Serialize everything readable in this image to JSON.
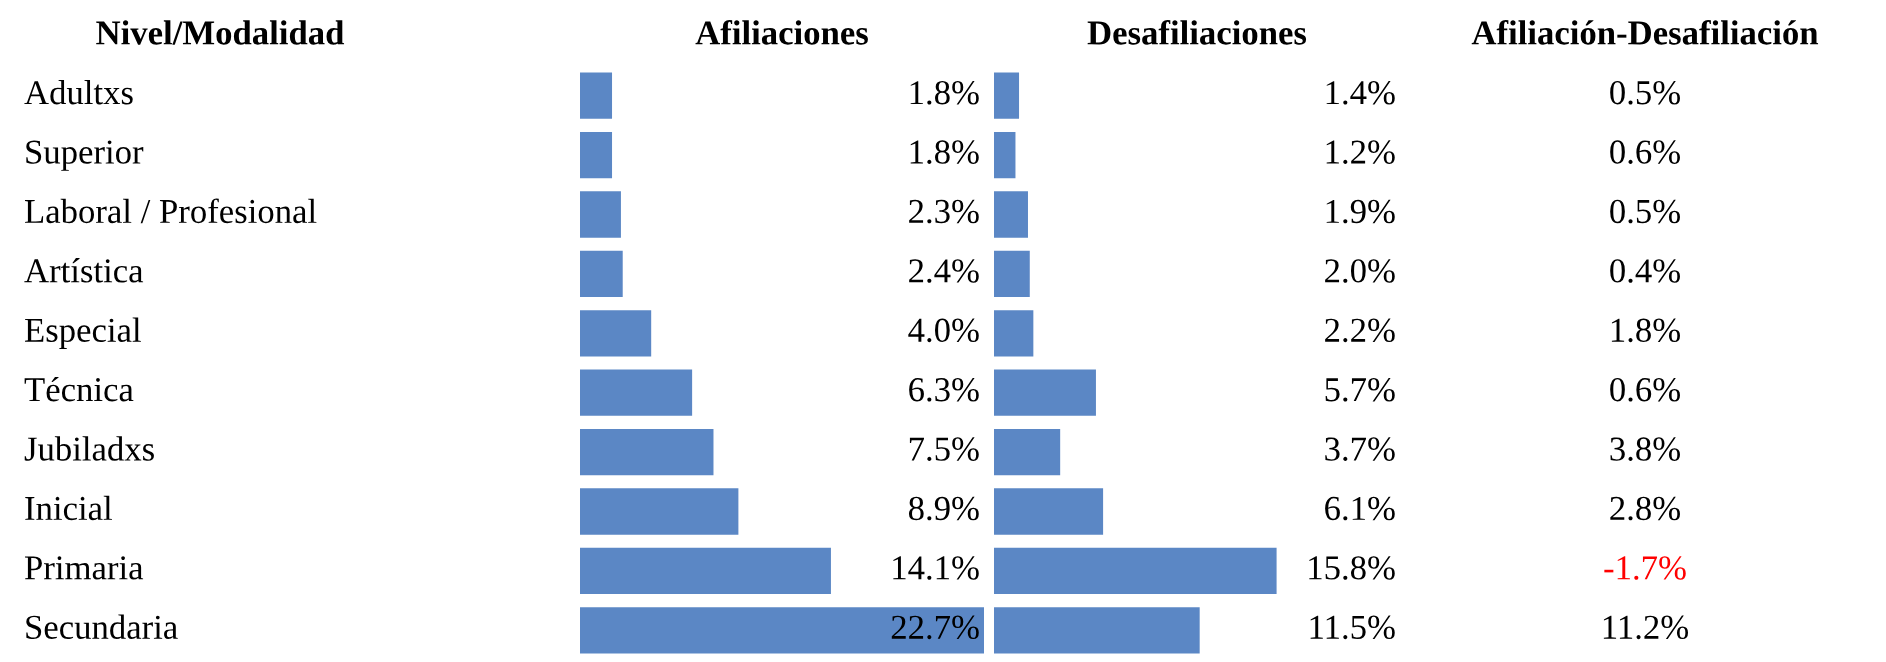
{
  "chart_data": [
    {
      "type": "bar",
      "orientation": "horizontal",
      "title": "Afiliaciones",
      "ylabel": "Nivel/Modalidad",
      "categories": [
        "Adultxs",
        "Superior",
        "Laboral / Profesional",
        "Artística",
        "Especial",
        "Técnica",
        "Jubiladxs",
        "Inicial",
        "Primaria",
        "Secundaria"
      ],
      "values": [
        1.8,
        1.8,
        2.3,
        2.4,
        4.0,
        6.3,
        7.5,
        8.9,
        14.1,
        22.7
      ],
      "value_labels": [
        "1.8%",
        "1.8%",
        "2.3%",
        "2.4%",
        "4.0%",
        "6.3%",
        "7.5%",
        "8.9%",
        "14.1%",
        "22.7%"
      ],
      "color": "#5b87c5",
      "tick_labels": false
    },
    {
      "type": "bar",
      "orientation": "horizontal",
      "title": "Desafiliaciones",
      "categories": [
        null,
        null,
        null,
        null,
        null,
        null,
        null,
        null,
        null,
        null
      ],
      "values": [
        1.4,
        1.2,
        1.9,
        2.0,
        2.2,
        5.7,
        3.7,
        6.1,
        15.8,
        11.5
      ],
      "value_labels": [
        "1.4%",
        "1.2%",
        "1.9%",
        "2.0%",
        "2.2%",
        "5.7%",
        "3.7%",
        "6.1%",
        "15.8%",
        "11.5%"
      ],
      "color": "#5b87c5",
      "tick_labels": false
    },
    {
      "type": "other",
      "title": "Afiliación-Desafiliación",
      "annotations": [
        "0.5%",
        "0.6%",
        "0.5%",
        "0.4%",
        "1.8%",
        "0.6%",
        "3.8%",
        "2.8%",
        "-1.7%",
        "11.2%"
      ]
    }
  ]
}
